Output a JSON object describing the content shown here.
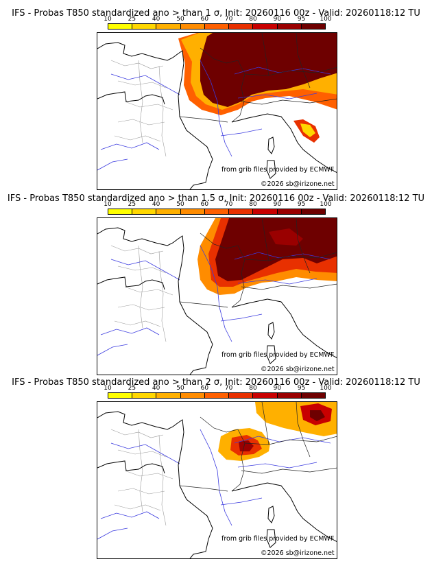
{
  "panels": [
    {
      "title": "IFS - Probas T850  standardized ano > than 1 σ, Init: 20260116 00z - Valid: 20260118:12 TU",
      "source_credit": "from grib files provided by ECMWF",
      "copyright": "©2026 sb@irizone.net",
      "threshold_sigma": 1
    },
    {
      "title": "IFS - Probas T850  standardized ano > than 1.5 σ, Init: 20260116 00z - Valid: 20260118:12 TU",
      "source_credit": "from grib files provided by ECMWF",
      "copyright": "©2026 sb@irizone.net",
      "threshold_sigma": 1.5
    },
    {
      "title": "IFS - Probas T850  standardized ano > than 2 σ, Init: 20260116 00z - Valid: 20260118:12 TU",
      "source_credit": "from grib files provided by ECMWF",
      "copyright": "©2026 sb@irizone.net",
      "threshold_sigma": 2
    }
  ],
  "legend": {
    "labels": [
      "10",
      "25",
      "40",
      "50",
      "60",
      "70",
      "80",
      "90",
      "95",
      "100"
    ],
    "colors": [
      "#ffff00",
      "#ffd700",
      "#ffb000",
      "#ff8c00",
      "#ff6000",
      "#e83000",
      "#c80000",
      "#9a0000",
      "#6e0000"
    ]
  }
}
